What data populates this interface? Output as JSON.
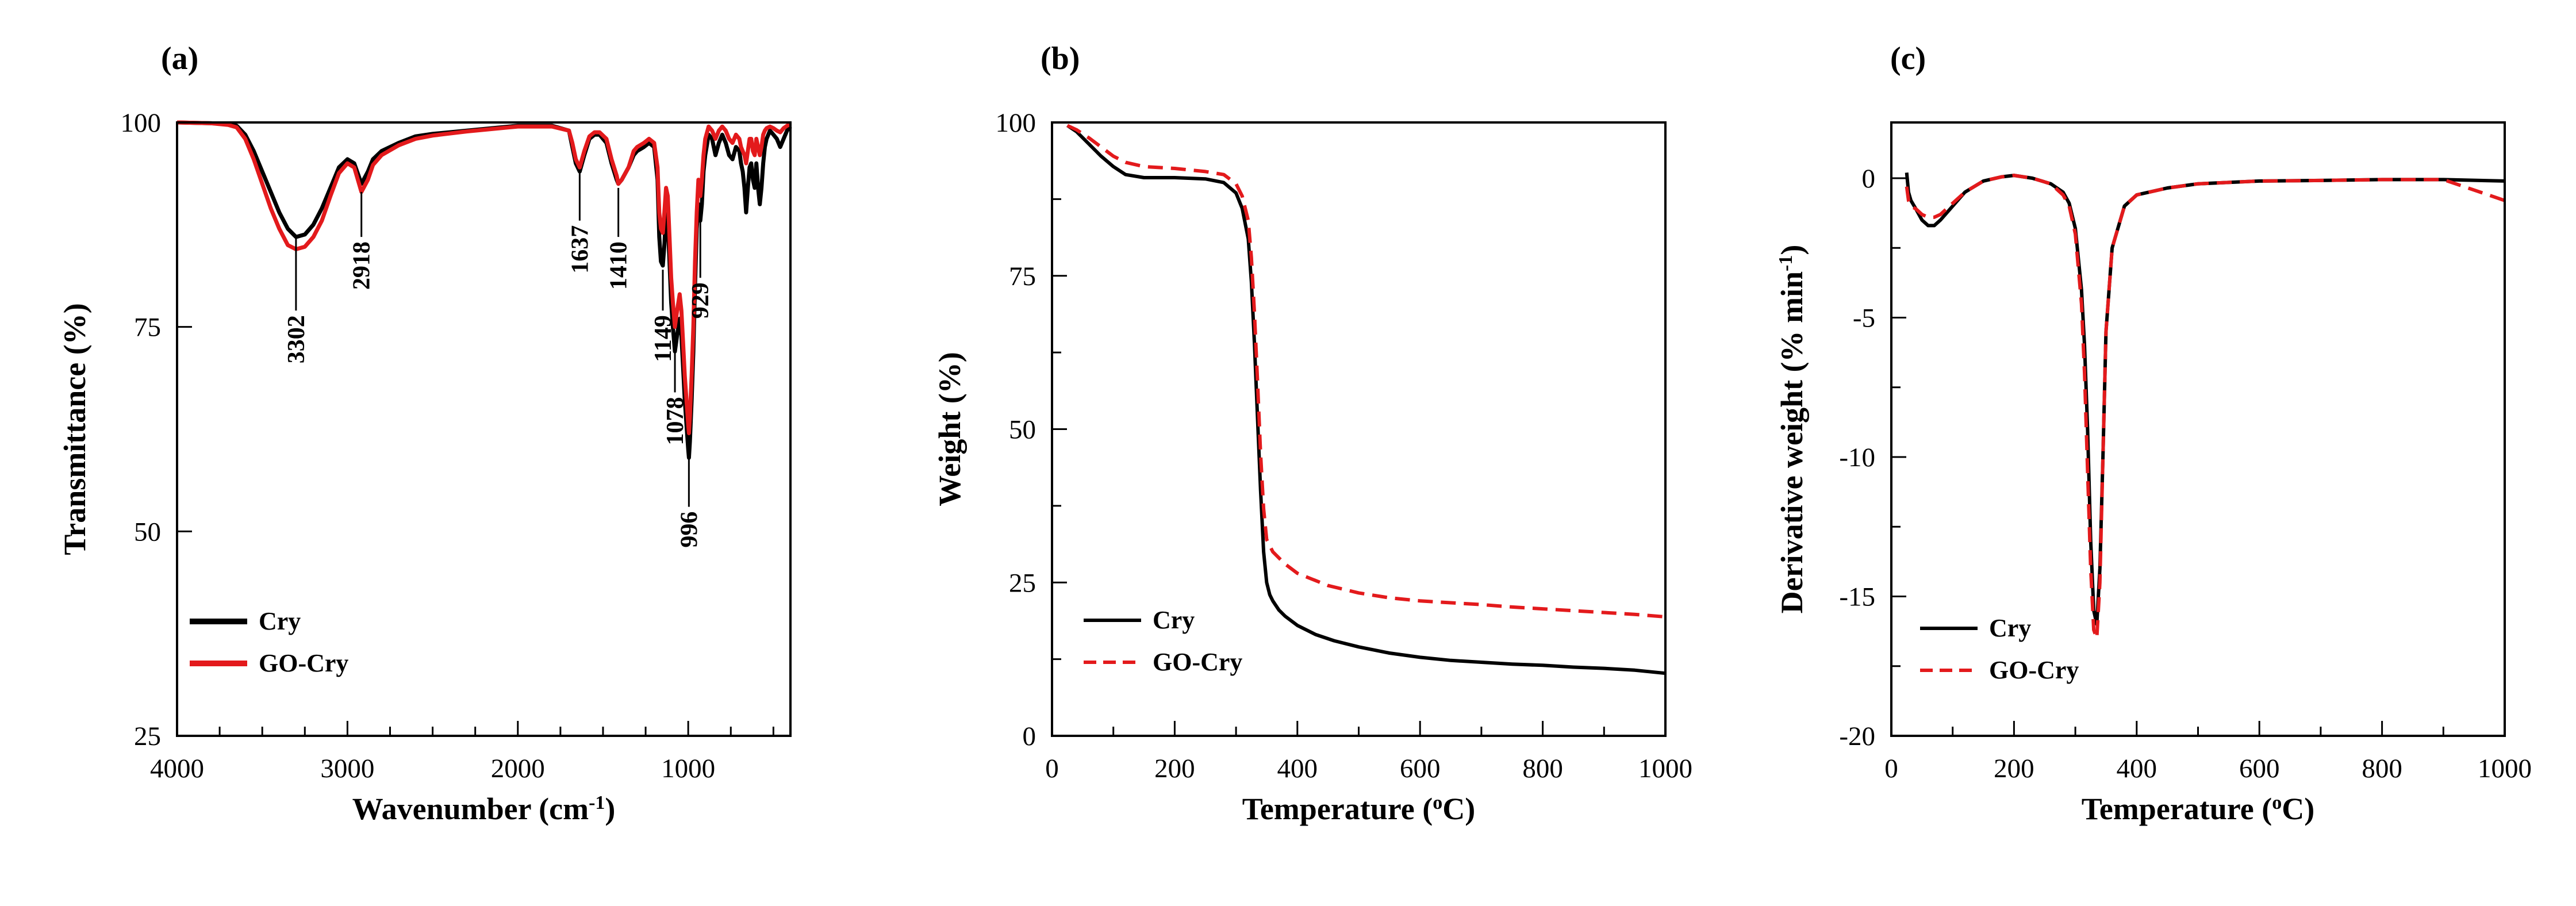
{
  "colors": {
    "cry": "#000000",
    "go_cry": "#e31a1c"
  },
  "chart_data": [
    {
      "id": "a",
      "type": "line",
      "panel_label": "(a)",
      "xlabel_main": "Wavenumber (cm",
      "xlabel_sup": "-1",
      "xlabel_end": ")",
      "ylabel": "Transmittance (%)",
      "xlim": [
        4000,
        400
      ],
      "ylim": [
        25,
        100
      ],
      "xticks": [
        4000,
        3000,
        2000,
        1000
      ],
      "yticks": [
        25,
        50,
        75,
        100
      ],
      "legend": [
        "Cry",
        "GO-Cry"
      ],
      "annotations": [
        {
          "label": "3302",
          "x": 3302,
          "from": 86,
          "to": 77
        },
        {
          "label": "2918",
          "x": 2918,
          "from": 91.5,
          "to": 86
        },
        {
          "label": "1637",
          "x": 1637,
          "from": 94,
          "to": 88
        },
        {
          "label": "1410",
          "x": 1410,
          "from": 92,
          "to": 86
        },
        {
          "label": "1149",
          "x": 1149,
          "from": 82,
          "to": 77
        },
        {
          "label": "1078",
          "x": 1078,
          "from": 72,
          "to": 67
        },
        {
          "label": "929",
          "x": 929,
          "from": 88,
          "to": 81
        },
        {
          "label": "996",
          "x": 996,
          "from": 59,
          "to": 53
        }
      ],
      "series": [
        {
          "name": "Cry",
          "style": "solid",
          "x": [
            4000,
            3800,
            3700,
            3650,
            3600,
            3550,
            3500,
            3450,
            3400,
            3350,
            3302,
            3250,
            3200,
            3150,
            3100,
            3050,
            3000,
            2960,
            2918,
            2880,
            2850,
            2800,
            2700,
            2600,
            2500,
            2300,
            2000,
            1800,
            1700,
            1680,
            1660,
            1637,
            1610,
            1580,
            1550,
            1520,
            1480,
            1450,
            1420,
            1410,
            1390,
            1350,
            1320,
            1300,
            1260,
            1230,
            1200,
            1180,
            1170,
            1160,
            1149,
            1140,
            1130,
            1120,
            1110,
            1100,
            1090,
            1078,
            1065,
            1050,
            1040,
            1030,
            1020,
            1010,
            1000,
            996,
            990,
            980,
            970,
            960,
            950,
            940,
            929,
            920,
            910,
            900,
            880,
            860,
            850,
            840,
            820,
            800,
            780,
            760,
            740,
            720,
            700,
            690,
            680,
            670,
            660,
            650,
            640,
            630,
            620,
            610,
            600,
            590,
            580,
            570,
            560,
            550,
            540,
            520,
            500,
            480,
            460,
            440,
            420,
            400
          ],
          "y": [
            100,
            99.9,
            99.8,
            99.6,
            98.5,
            96.5,
            94,
            91.5,
            89,
            87,
            86,
            86.3,
            87.5,
            89.5,
            92,
            94.5,
            95.5,
            95,
            92.5,
            94,
            95.5,
            96.5,
            97.5,
            98.3,
            98.6,
            99,
            99.6,
            99.6,
            99,
            97,
            95,
            94,
            96,
            98,
            98.5,
            98.5,
            97.5,
            95,
            93,
            92.5,
            93,
            94.5,
            96,
            96.5,
            97,
            97.5,
            97,
            93,
            86,
            83,
            82.5,
            85,
            89,
            88,
            83,
            78,
            75,
            72,
            74,
            76,
            74,
            70,
            66,
            63,
            60,
            59,
            61,
            66,
            72,
            80,
            87,
            90,
            88,
            90,
            94,
            96,
            98.5,
            98,
            97,
            96,
            97.5,
            98.5,
            97.5,
            96,
            95.5,
            97,
            96.5,
            95,
            94,
            92,
            89,
            92,
            94.5,
            95,
            93,
            92,
            95,
            92,
            90,
            92,
            95,
            97,
            98,
            99,
            98.5,
            98,
            97,
            98,
            99,
            99.5
          ]
        },
        {
          "name": "GO-Cry",
          "style": "solid",
          "x": [
            4000,
            3800,
            3700,
            3650,
            3600,
            3550,
            3500,
            3450,
            3400,
            3350,
            3302,
            3250,
            3200,
            3150,
            3100,
            3050,
            3000,
            2960,
            2918,
            2880,
            2850,
            2800,
            2700,
            2600,
            2500,
            2300,
            2000,
            1800,
            1700,
            1680,
            1660,
            1637,
            1610,
            1580,
            1550,
            1520,
            1480,
            1450,
            1420,
            1410,
            1390,
            1350,
            1320,
            1300,
            1260,
            1230,
            1200,
            1180,
            1170,
            1160,
            1149,
            1140,
            1130,
            1120,
            1110,
            1100,
            1090,
            1078,
            1065,
            1050,
            1040,
            1030,
            1020,
            1010,
            1000,
            996,
            990,
            980,
            970,
            960,
            950,
            940,
            929,
            920,
            910,
            900,
            880,
            860,
            850,
            840,
            820,
            800,
            780,
            760,
            740,
            720,
            700,
            690,
            680,
            670,
            660,
            650,
            640,
            630,
            620,
            610,
            600,
            590,
            580,
            570,
            560,
            550,
            540,
            520,
            500,
            480,
            460,
            440,
            420,
            400
          ],
          "y": [
            100,
            99.9,
            99.7,
            99.4,
            98,
            95.5,
            92.5,
            89.5,
            87,
            85,
            84.5,
            84.8,
            86,
            88,
            91,
            93.8,
            95,
            94.5,
            91.5,
            93,
            94.8,
            96,
            97.2,
            98,
            98.4,
            98.9,
            99.5,
            99.5,
            99,
            97.5,
            95.5,
            94.5,
            96.5,
            98.3,
            98.8,
            98.8,
            98,
            95.5,
            93.5,
            92.5,
            93,
            94.5,
            96.5,
            97,
            97.5,
            98,
            97.5,
            94.5,
            89,
            87,
            86.5,
            89,
            92,
            91,
            86,
            81,
            78,
            75,
            77,
            79,
            77,
            73,
            69,
            66,
            63,
            62,
            64,
            69,
            75,
            83,
            89,
            93,
            91,
            93,
            96,
            98,
            99.5,
            99,
            98.5,
            98,
            99,
            99.5,
            99,
            98,
            97.5,
            98.5,
            98,
            97,
            96.5,
            96,
            95,
            96.5,
            98,
            98,
            96.5,
            96,
            98,
            97,
            96,
            97,
            98.5,
            99,
            99.3,
            99.5,
            99.3,
            99,
            98.8,
            99.3,
            99.6,
            99.8
          ]
        }
      ]
    },
    {
      "id": "b",
      "type": "line",
      "panel_label": "(b)",
      "xlabel_main": "Temperature (",
      "xlabel_sup": "o",
      "xlabel_end": "C)",
      "ylabel": "Weight (%)",
      "xlim": [
        0,
        1000
      ],
      "ylim": [
        0,
        100
      ],
      "xticks": [
        0,
        200,
        400,
        600,
        800,
        1000
      ],
      "yticks": [
        0,
        25,
        50,
        75,
        100
      ],
      "legend": [
        "Cry",
        "GO-Cry"
      ],
      "series": [
        {
          "name": "Cry",
          "style": "solid",
          "x": [
            25,
            40,
            60,
            80,
            100,
            120,
            150,
            200,
            250,
            280,
            300,
            310,
            320,
            325,
            330,
            335,
            340,
            345,
            350,
            355,
            360,
            370,
            380,
            400,
            430,
            460,
            500,
            550,
            600,
            650,
            700,
            750,
            800,
            850,
            900,
            950,
            1000
          ],
          "y": [
            99.5,
            98.5,
            96.5,
            94.5,
            92.8,
            91.5,
            91,
            91,
            90.8,
            90.2,
            88.5,
            86,
            81,
            74,
            64,
            52,
            40,
            30,
            25,
            23,
            22,
            20.5,
            19.5,
            18,
            16.5,
            15.5,
            14.5,
            13.5,
            12.8,
            12.3,
            12,
            11.7,
            11.5,
            11.2,
            11,
            10.7,
            10.2
          ]
        },
        {
          "name": "GO-Cry",
          "style": "dashed",
          "x": [
            25,
            40,
            60,
            80,
            100,
            120,
            150,
            200,
            250,
            280,
            300,
            310,
            320,
            325,
            330,
            335,
            340,
            345,
            350,
            360,
            380,
            400,
            450,
            500,
            550,
            600,
            650,
            700,
            750,
            800,
            850,
            900,
            950,
            1000
          ],
          "y": [
            99.5,
            98.8,
            97.5,
            96,
            94.5,
            93.5,
            92.8,
            92.5,
            92,
            91.5,
            90,
            88,
            84,
            78,
            69,
            58,
            46,
            37,
            32,
            30,
            28,
            26.5,
            24.5,
            23.3,
            22.5,
            22,
            21.7,
            21.4,
            21,
            20.7,
            20.4,
            20.1,
            19.8,
            19.4
          ]
        }
      ]
    },
    {
      "id": "c",
      "type": "line",
      "panel_label": "(c)",
      "xlabel_main": "Temperature (",
      "xlabel_sup": "o",
      "xlabel_end": "C)",
      "ylabel_main": "Derivative weight (% min",
      "ylabel_sup": "-1",
      "ylabel_end": ")",
      "xlim": [
        0,
        1000
      ],
      "ylim": [
        -20,
        2
      ],
      "xticks": [
        0,
        200,
        400,
        600,
        800,
        1000
      ],
      "yticks": [
        -20,
        -15,
        -10,
        -5,
        0
      ],
      "legend": [
        "Cry",
        "GO-Cry"
      ],
      "series": [
        {
          "name": "Cry",
          "style": "solid",
          "x": [
            25,
            28,
            32,
            40,
            50,
            60,
            70,
            80,
            100,
            120,
            150,
            180,
            200,
            230,
            260,
            280,
            290,
            300,
            310,
            315,
            320,
            325,
            330,
            335,
            340,
            345,
            350,
            360,
            380,
            400,
            450,
            500,
            600,
            700,
            800,
            900,
            1000
          ],
          "y": [
            0.2,
            -0.5,
            -0.8,
            -1.1,
            -1.5,
            -1.7,
            -1.7,
            -1.5,
            -1.0,
            -0.5,
            -0.1,
            0.05,
            0.1,
            0,
            -0.2,
            -0.5,
            -0.9,
            -1.8,
            -4,
            -6,
            -9,
            -13,
            -15.5,
            -16,
            -14,
            -10,
            -5.5,
            -2.5,
            -1,
            -0.6,
            -0.35,
            -0.2,
            -0.1,
            -0.08,
            -0.05,
            -0.05,
            -0.1
          ]
        },
        {
          "name": "GO-Cry",
          "style": "dashed",
          "x": [
            25,
            28,
            32,
            40,
            50,
            60,
            70,
            80,
            100,
            120,
            150,
            180,
            200,
            230,
            260,
            280,
            290,
            300,
            310,
            315,
            320,
            325,
            330,
            335,
            340,
            345,
            350,
            360,
            380,
            400,
            450,
            500,
            600,
            700,
            800,
            900,
            1000
          ],
          "y": [
            -0.3,
            -0.8,
            -1.0,
            -1.1,
            -1.3,
            -1.4,
            -1.4,
            -1.3,
            -0.9,
            -0.5,
            -0.1,
            0.05,
            0.1,
            0,
            -0.2,
            -0.6,
            -1,
            -2,
            -4.5,
            -7,
            -10.5,
            -14,
            -16.2,
            -16.5,
            -14.5,
            -10,
            -5.5,
            -2.5,
            -1,
            -0.6,
            -0.35,
            -0.2,
            -0.1,
            -0.08,
            -0.05,
            -0.05,
            -0.8
          ]
        }
      ]
    }
  ]
}
